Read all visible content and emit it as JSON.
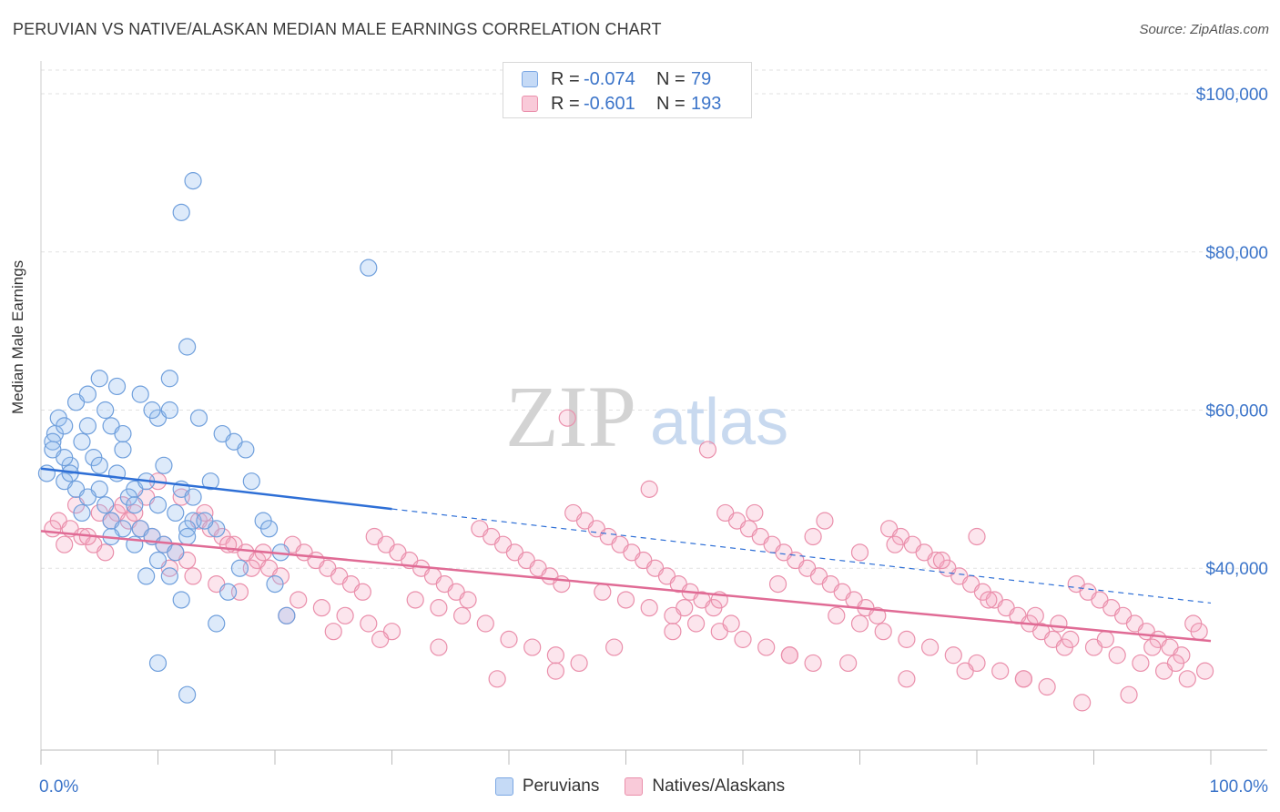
{
  "header": {
    "title": "PERUVIAN VS NATIVE/ALASKAN MEDIAN MALE EARNINGS CORRELATION CHART",
    "source": "Source: ZipAtlas.com"
  },
  "watermark": {
    "zip": "ZIP",
    "atlas": "atlas"
  },
  "legend": {
    "rows": [
      {
        "r_label": "R =",
        "r_value": "-0.074",
        "n_label": "N =",
        "n_value": "79",
        "color": "#7ba7e3",
        "fill": "#c5daf6"
      },
      {
        "r_label": "R =",
        "r_value": "-0.601",
        "n_label": "N =",
        "n_value": "193",
        "color": "#ea8fab",
        "fill": "#f9cad9"
      }
    ]
  },
  "bottom_legend": {
    "peruvians": "Peruvians",
    "natives": "Natives/Alaskans"
  },
  "chart_data": {
    "type": "scatter",
    "title": "PERUVIAN VS NATIVE/ALASKAN MEDIAN MALE EARNINGS CORRELATION CHART",
    "xlabel": "",
    "ylabel": "Median Male Earnings",
    "xlim": [
      0,
      100
    ],
    "ylim": [
      17000,
      103000
    ],
    "x_tick_labels": [
      "0.0%",
      "100.0%"
    ],
    "y_ticks": [
      40000,
      60000,
      80000,
      100000
    ],
    "y_tick_labels": [
      "$40,000",
      "$60,000",
      "$80,000",
      "$100,000"
    ],
    "colors": {
      "peruvians": "#4a86d6",
      "natives": "#e77fa2",
      "peru_line": "#2e6fd6",
      "native_line": "#e06b95"
    },
    "series": [
      {
        "name": "Peruvians",
        "trend": {
          "x0": 0,
          "y0": 52600,
          "x1": 100,
          "y1": 35600,
          "solid_until": 30
        },
        "points": [
          [
            1.5,
            59
          ],
          [
            3.0,
            61
          ],
          [
            4.0,
            58
          ],
          [
            1.2,
            57
          ],
          [
            5.5,
            60
          ],
          [
            6.0,
            58
          ],
          [
            7.0,
            55
          ],
          [
            8.5,
            62
          ],
          [
            10.0,
            59
          ],
          [
            11.0,
            60
          ],
          [
            3.5,
            56
          ],
          [
            4.5,
            54
          ],
          [
            2.5,
            53
          ],
          [
            6.5,
            52
          ],
          [
            8.0,
            50
          ],
          [
            9.0,
            51
          ],
          [
            10.5,
            53
          ],
          [
            12.0,
            50
          ],
          [
            13.0,
            49
          ],
          [
            14.5,
            51
          ],
          [
            2.0,
            51
          ],
          [
            3.0,
            50
          ],
          [
            5.0,
            50
          ],
          [
            7.5,
            49
          ],
          [
            8.0,
            48
          ],
          [
            10.0,
            48
          ],
          [
            11.5,
            47
          ],
          [
            13.0,
            46
          ],
          [
            12.5,
            45
          ],
          [
            15.0,
            45
          ],
          [
            1.0,
            56
          ],
          [
            2.0,
            58
          ],
          [
            4.0,
            62
          ],
          [
            5.0,
            64
          ],
          [
            6.5,
            63
          ],
          [
            7.0,
            57
          ],
          [
            9.5,
            60
          ],
          [
            11.0,
            64
          ],
          [
            12.5,
            68
          ],
          [
            13.5,
            59
          ],
          [
            2.5,
            52
          ],
          [
            4.0,
            49
          ],
          [
            5.5,
            48
          ],
          [
            6.0,
            46
          ],
          [
            8.5,
            45
          ],
          [
            9.5,
            44
          ],
          [
            10.5,
            43
          ],
          [
            11.5,
            42
          ],
          [
            12.5,
            44
          ],
          [
            14.0,
            46
          ],
          [
            15.5,
            57
          ],
          [
            16.5,
            56
          ],
          [
            17.5,
            55
          ],
          [
            18.0,
            51
          ],
          [
            19.0,
            46
          ],
          [
            19.5,
            45
          ],
          [
            20.5,
            42
          ],
          [
            20.0,
            38
          ],
          [
            21.0,
            34
          ],
          [
            17.0,
            40
          ],
          [
            16.0,
            37
          ],
          [
            15.0,
            33
          ],
          [
            12.0,
            36
          ],
          [
            11.0,
            39
          ],
          [
            10.0,
            41
          ],
          [
            9.0,
            39
          ],
          [
            8.0,
            43
          ],
          [
            7.0,
            45
          ],
          [
            6.0,
            44
          ],
          [
            3.5,
            47
          ],
          [
            13.0,
            89
          ],
          [
            12.0,
            85
          ],
          [
            28.0,
            78
          ],
          [
            12.5,
            24
          ],
          [
            10.0,
            28
          ],
          [
            1.0,
            55
          ],
          [
            0.5,
            52
          ],
          [
            2.0,
            54
          ],
          [
            5.0,
            53
          ]
        ]
      },
      {
        "name": "Natives/Alaskans",
        "trend": {
          "x0": 0,
          "y0": 44700,
          "x1": 100,
          "y1": 30800
        },
        "points": [
          [
            1.5,
            46
          ],
          [
            2.5,
            45
          ],
          [
            3.5,
            44
          ],
          [
            4.5,
            43
          ],
          [
            5.5,
            42
          ],
          [
            6.5,
            47
          ],
          [
            7.5,
            46
          ],
          [
            8.5,
            45
          ],
          [
            9.5,
            44
          ],
          [
            10.5,
            43
          ],
          [
            11.5,
            42
          ],
          [
            12.5,
            41
          ],
          [
            13.5,
            46
          ],
          [
            14.5,
            45
          ],
          [
            15.5,
            44
          ],
          [
            16.5,
            43
          ],
          [
            17.5,
            42
          ],
          [
            18.5,
            41
          ],
          [
            19.5,
            40
          ],
          [
            20.5,
            39
          ],
          [
            21.5,
            43
          ],
          [
            22.5,
            42
          ],
          [
            23.5,
            41
          ],
          [
            24.5,
            40
          ],
          [
            25.5,
            39
          ],
          [
            26.5,
            38
          ],
          [
            27.5,
            37
          ],
          [
            28.5,
            44
          ],
          [
            29.5,
            43
          ],
          [
            30.5,
            42
          ],
          [
            31.5,
            41
          ],
          [
            32.5,
            40
          ],
          [
            33.5,
            39
          ],
          [
            34.5,
            38
          ],
          [
            35.5,
            37
          ],
          [
            36.5,
            36
          ],
          [
            37.5,
            45
          ],
          [
            38.5,
            44
          ],
          [
            39.5,
            43
          ],
          [
            40.5,
            42
          ],
          [
            41.5,
            41
          ],
          [
            42.5,
            40
          ],
          [
            43.5,
            39
          ],
          [
            44.5,
            38
          ],
          [
            45.5,
            47
          ],
          [
            46.5,
            46
          ],
          [
            47.5,
            45
          ],
          [
            48.5,
            44
          ],
          [
            49.5,
            43
          ],
          [
            50.5,
            42
          ],
          [
            51.5,
            41
          ],
          [
            52.5,
            40
          ],
          [
            53.5,
            39
          ],
          [
            54.5,
            38
          ],
          [
            55.5,
            37
          ],
          [
            56.5,
            36
          ],
          [
            57.5,
            35
          ],
          [
            58.5,
            47
          ],
          [
            59.5,
            46
          ],
          [
            60.5,
            45
          ],
          [
            61.5,
            44
          ],
          [
            62.5,
            43
          ],
          [
            63.5,
            42
          ],
          [
            64.5,
            41
          ],
          [
            65.5,
            40
          ],
          [
            66.5,
            39
          ],
          [
            67.5,
            38
          ],
          [
            68.5,
            37
          ],
          [
            69.5,
            36
          ],
          [
            70.5,
            35
          ],
          [
            71.5,
            34
          ],
          [
            72.5,
            45
          ],
          [
            73.5,
            44
          ],
          [
            74.5,
            43
          ],
          [
            75.5,
            42
          ],
          [
            76.5,
            41
          ],
          [
            77.5,
            40
          ],
          [
            78.5,
            39
          ],
          [
            79.5,
            38
          ],
          [
            80.5,
            37
          ],
          [
            81.5,
            36
          ],
          [
            82.5,
            35
          ],
          [
            83.5,
            34
          ],
          [
            84.5,
            33
          ],
          [
            85.5,
            32
          ],
          [
            86.5,
            31
          ],
          [
            87.5,
            30
          ],
          [
            88.5,
            38
          ],
          [
            89.5,
            37
          ],
          [
            90.5,
            36
          ],
          [
            91.5,
            35
          ],
          [
            92.5,
            34
          ],
          [
            93.5,
            33
          ],
          [
            94.5,
            32
          ],
          [
            95.5,
            31
          ],
          [
            96.5,
            30
          ],
          [
            97.5,
            29
          ],
          [
            98.5,
            33
          ],
          [
            99.0,
            32
          ],
          [
            97.0,
            28
          ],
          [
            3.0,
            48
          ],
          [
            5.0,
            47
          ],
          [
            7.0,
            48
          ],
          [
            9.0,
            49
          ],
          [
            11.0,
            40
          ],
          [
            13.0,
            39
          ],
          [
            15.0,
            38
          ],
          [
            17.0,
            37
          ],
          [
            19.0,
            42
          ],
          [
            22.0,
            36
          ],
          [
            24.0,
            35
          ],
          [
            26.0,
            34
          ],
          [
            28.0,
            33
          ],
          [
            30.0,
            32
          ],
          [
            32.0,
            36
          ],
          [
            34.0,
            35
          ],
          [
            36.0,
            34
          ],
          [
            38.0,
            33
          ],
          [
            40.0,
            31
          ],
          [
            42.0,
            30
          ],
          [
            44.0,
            29
          ],
          [
            46.0,
            28
          ],
          [
            48.0,
            37
          ],
          [
            50.0,
            36
          ],
          [
            52.0,
            35
          ],
          [
            54.0,
            34
          ],
          [
            56.0,
            33
          ],
          [
            58.0,
            32
          ],
          [
            60.0,
            31
          ],
          [
            62.0,
            30
          ],
          [
            64.0,
            29
          ],
          [
            66.0,
            28
          ],
          [
            68.0,
            34
          ],
          [
            70.0,
            33
          ],
          [
            72.0,
            32
          ],
          [
            74.0,
            31
          ],
          [
            76.0,
            30
          ],
          [
            78.0,
            29
          ],
          [
            80.0,
            28
          ],
          [
            82.0,
            27
          ],
          [
            84.0,
            26
          ],
          [
            86.0,
            25
          ],
          [
            88.0,
            31
          ],
          [
            90.0,
            30
          ],
          [
            92.0,
            29
          ],
          [
            94.0,
            28
          ],
          [
            96.0,
            27
          ],
          [
            98.0,
            26
          ],
          [
            99.5,
            27
          ],
          [
            93.0,
            24
          ],
          [
            89.0,
            23
          ],
          [
            84.0,
            26
          ],
          [
            79.0,
            27
          ],
          [
            74.0,
            26
          ],
          [
            69.0,
            28
          ],
          [
            64.0,
            29
          ],
          [
            59.0,
            33
          ],
          [
            54.0,
            32
          ],
          [
            49.0,
            30
          ],
          [
            44.0,
            27
          ],
          [
            39.0,
            26
          ],
          [
            34.0,
            30
          ],
          [
            29.0,
            31
          ],
          [
            25.0,
            32
          ],
          [
            21.0,
            34
          ],
          [
            18.0,
            40
          ],
          [
            16.0,
            43
          ],
          [
            14.0,
            47
          ],
          [
            12.0,
            49
          ],
          [
            10.0,
            51
          ],
          [
            8.0,
            47
          ],
          [
            6.0,
            46
          ],
          [
            4.0,
            44
          ],
          [
            2.0,
            43
          ],
          [
            1.0,
            45
          ],
          [
            45.0,
            59
          ],
          [
            57.0,
            55
          ],
          [
            52.0,
            50
          ],
          [
            61.0,
            47
          ],
          [
            67.0,
            46
          ],
          [
            73.0,
            43
          ],
          [
            77.0,
            41
          ],
          [
            81.0,
            36
          ],
          [
            85.0,
            34
          ],
          [
            87.0,
            33
          ],
          [
            91.0,
            31
          ],
          [
            95.0,
            30
          ],
          [
            80.0,
            44
          ],
          [
            70.0,
            42
          ],
          [
            66.0,
            44
          ],
          [
            63.0,
            38
          ],
          [
            58.0,
            36
          ],
          [
            55.0,
            35
          ]
        ]
      }
    ]
  }
}
